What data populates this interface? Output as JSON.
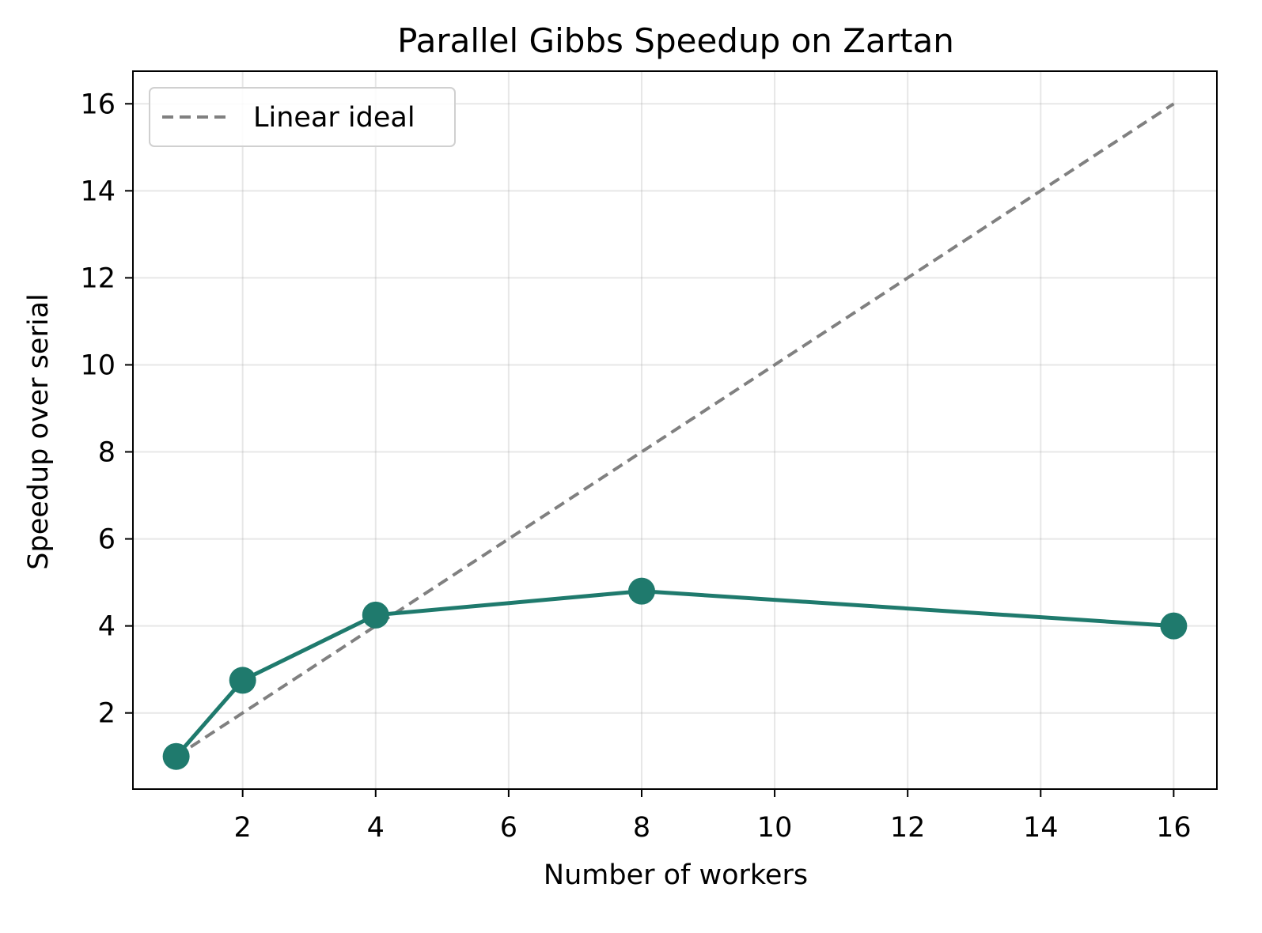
{
  "chart_data": {
    "type": "line",
    "title": "Parallel Gibbs Speedup on Zartan",
    "xlabel": "Number of workers",
    "ylabel": "Speedup over serial",
    "xlim": [
      0.35,
      16.65
    ],
    "ylim": [
      0.25,
      16.75
    ],
    "xticks": [
      2,
      4,
      6,
      8,
      10,
      12,
      14,
      16
    ],
    "yticks": [
      2,
      4,
      6,
      8,
      10,
      12,
      14,
      16
    ],
    "grid": true,
    "legend": {
      "placement": "top-left",
      "entries": [
        "Linear ideal"
      ]
    },
    "series": [
      {
        "name": "",
        "color": "#1f7a6d",
        "style": "solid",
        "marker": "circle",
        "x": [
          1,
          2,
          4,
          8,
          16
        ],
        "y": [
          1.0,
          2.75,
          4.25,
          4.8,
          4.0
        ]
      },
      {
        "name": "Linear ideal",
        "color": "#808080",
        "style": "dashed",
        "marker": "none",
        "x": [
          1,
          16
        ],
        "y": [
          1,
          16
        ]
      }
    ]
  }
}
